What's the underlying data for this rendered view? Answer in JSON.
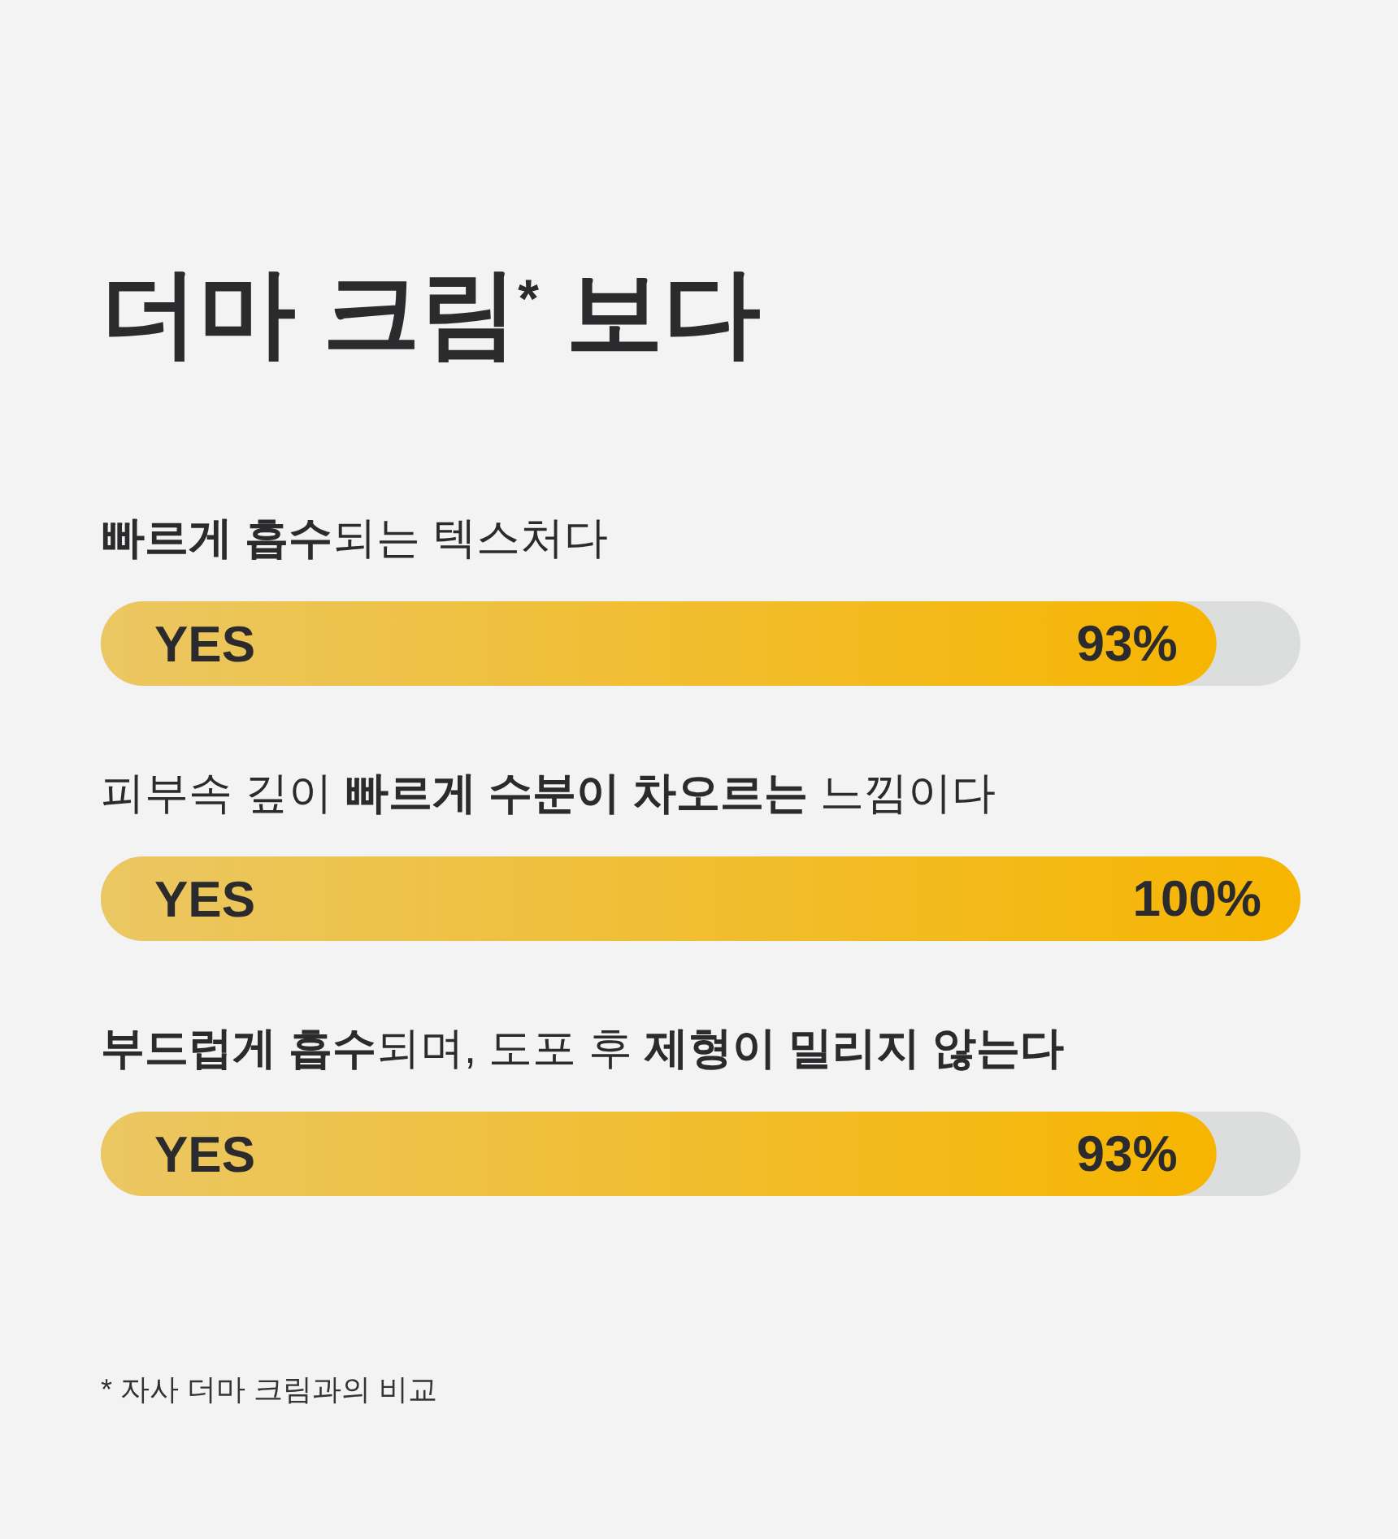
{
  "chart_data": {
    "type": "bar",
    "orientation": "horizontal",
    "title": "더마 크림$^{*}$ 보다",
    "categories": [
      "**빠르게 흡수**되는 텍스처다",
      "피부속 깊이 **빠르게 수분이 차오르는** 느낌이다",
      "**부드럽게 흡수**되며, 도포 후 **제형이 밀리지 않는다**"
    ],
    "values": [
      93,
      100,
      93
    ],
    "value_labels": [
      "93%",
      "100%",
      "93%"
    ],
    "color": "#f7b500",
    "xlim": [
      0,
      100
    ],
    "tick_labels": "y",
    "annotations": [
      "YES",
      "YES",
      "YES",
      "* 자사 더마 크림과의 비교"
    ]
  }
}
